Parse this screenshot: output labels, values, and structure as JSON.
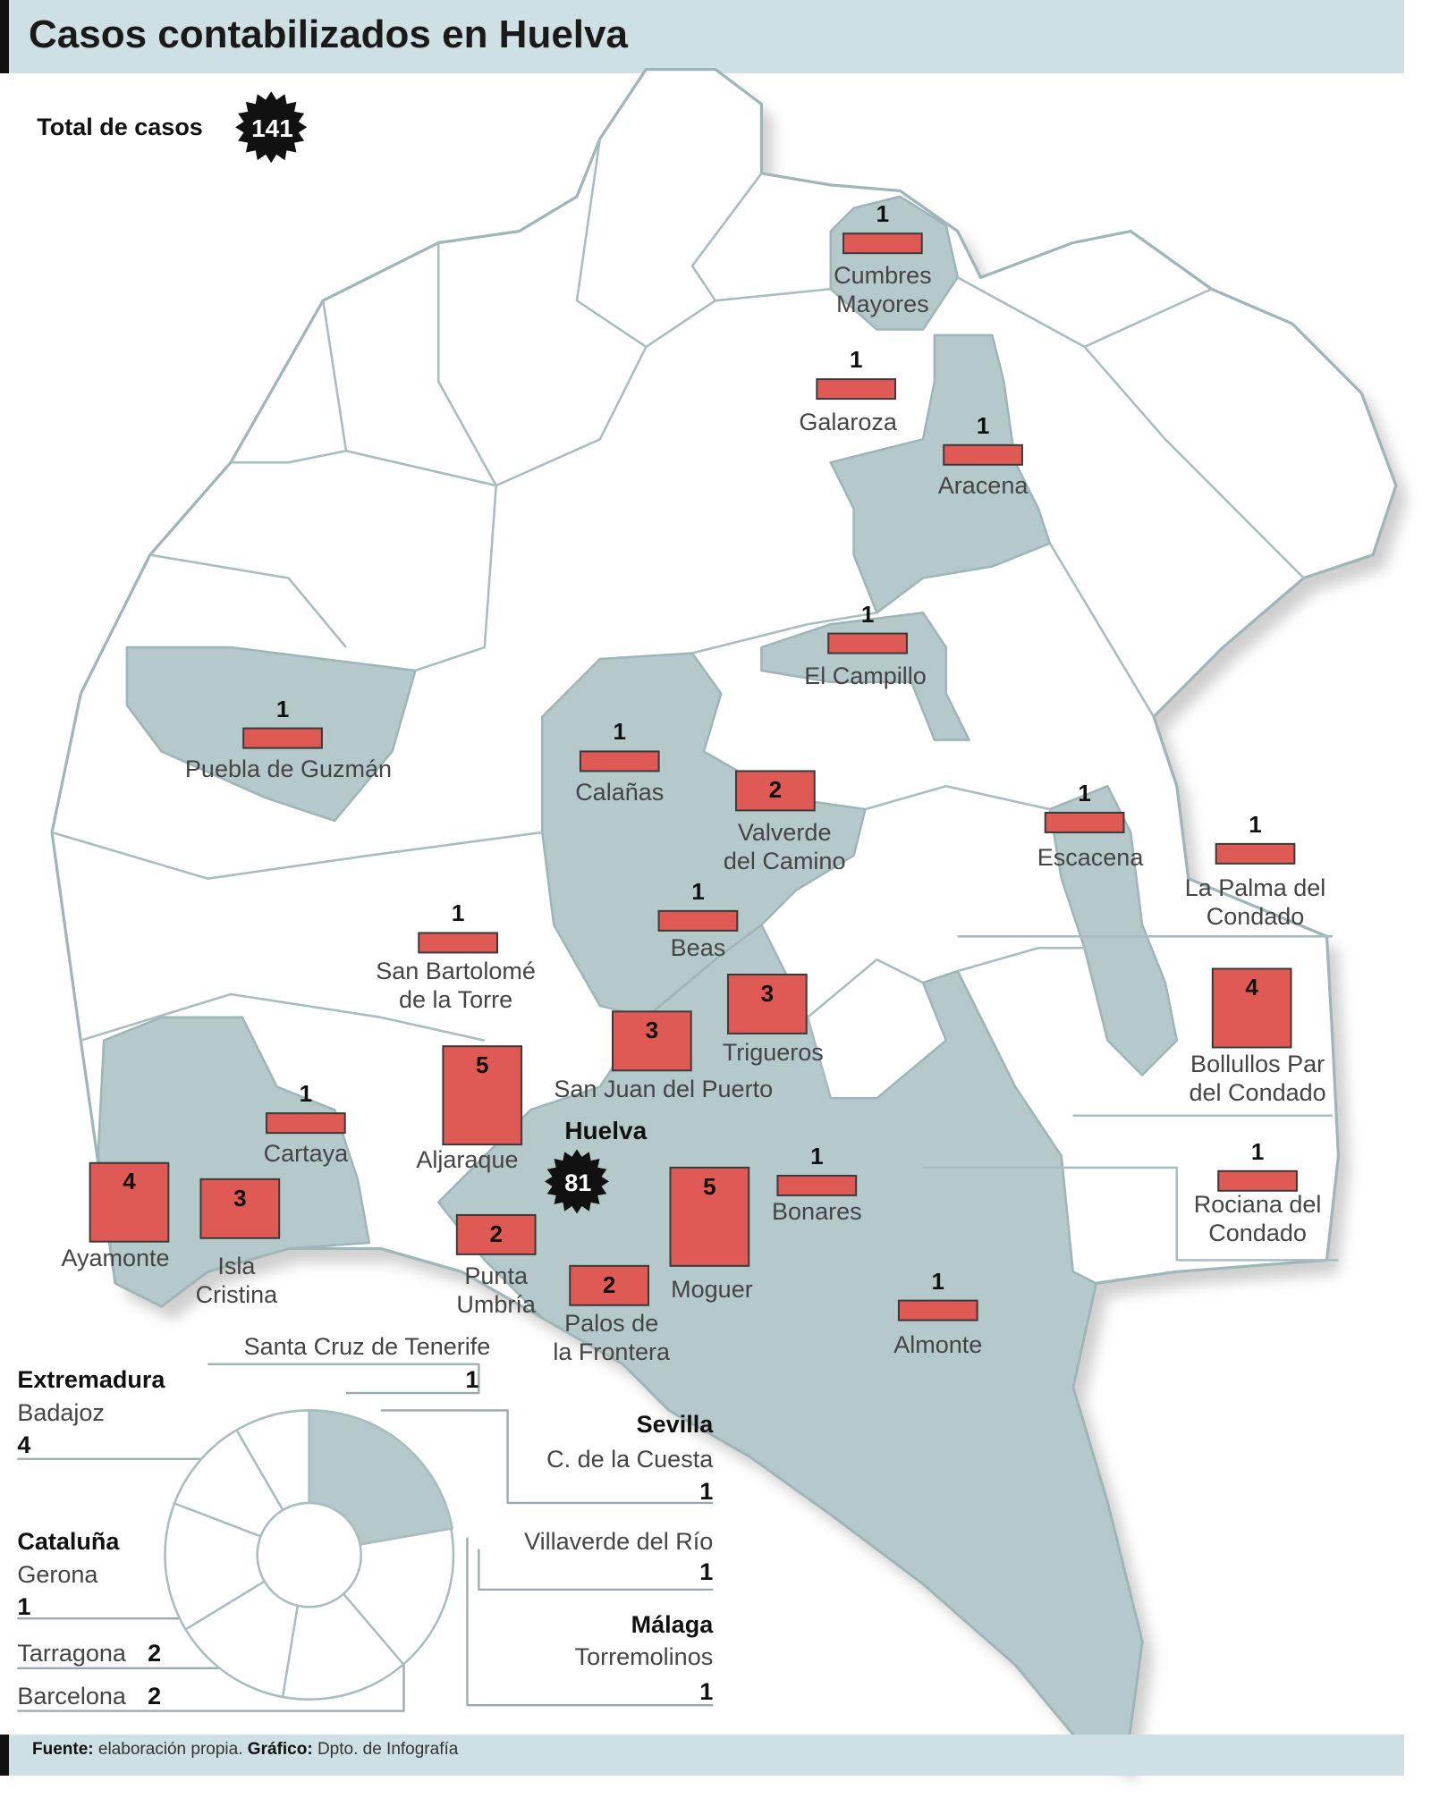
{
  "header": {
    "title": "Casos contabilizados en Huelva"
  },
  "total": {
    "label": "Total de casos",
    "value": 141
  },
  "capital": {
    "name": "Huelva",
    "cases": 81
  },
  "municipalities": [
    {
      "name": "Cumbres\nMayores",
      "cases": 1
    },
    {
      "name": "Galaroza",
      "cases": 1
    },
    {
      "name": "Aracena",
      "cases": 1
    },
    {
      "name": "El Campillo",
      "cases": 1
    },
    {
      "name": "Puebla de Guzmán",
      "cases": 1
    },
    {
      "name": "Calañas",
      "cases": 1
    },
    {
      "name": "Valverde\ndel Camino",
      "cases": 2
    },
    {
      "name": "Escacena",
      "cases": 1
    },
    {
      "name": "La Palma del\nCondado",
      "cases": 1
    },
    {
      "name": "Beas",
      "cases": 1
    },
    {
      "name": "San Bartolomé\nde la Torre",
      "cases": 1
    },
    {
      "name": "Trigueros",
      "cases": 3
    },
    {
      "name": "San Juan del Puerto",
      "cases": 3
    },
    {
      "name": "Bollullos Par\ndel Condado",
      "cases": 4
    },
    {
      "name": "Aljaraque",
      "cases": 5
    },
    {
      "name": "Cartaya",
      "cases": 1
    },
    {
      "name": "Ayamonte",
      "cases": 4
    },
    {
      "name": "Isla\nCristina",
      "cases": 3
    },
    {
      "name": "Punta\nUmbría",
      "cases": 2
    },
    {
      "name": "Moguer",
      "cases": 5
    },
    {
      "name": "Palos de\nla Frontera",
      "cases": 2
    },
    {
      "name": "Bonares",
      "cases": 1
    },
    {
      "name": "Almonte",
      "cases": 1
    },
    {
      "name": "Rociana del\nCondado",
      "cases": 1
    }
  ],
  "outside": [
    {
      "places": [
        {
          "name": "Santa Cruz de Tenerife",
          "cases": 1
        }
      ]
    },
    {
      "region": "Extremadura",
      "places": [
        {
          "name": "Badajoz",
          "cases": 4
        }
      ]
    },
    {
      "region": "Cataluña",
      "places": [
        {
          "name": "Gerona",
          "cases": 1
        },
        {
          "name": "Tarragona",
          "cases": 2
        },
        {
          "name": "Barcelona",
          "cases": 2
        }
      ]
    },
    {
      "region": "Sevilla",
      "places": [
        {
          "name": "C. de la Cuesta",
          "cases": 1
        },
        {
          "name": "Villaverde del Río",
          "cases": 1
        }
      ]
    },
    {
      "region": "Málaga",
      "places": [
        {
          "name": "Torremolinos",
          "cases": 1
        }
      ]
    }
  ],
  "footer": {
    "source_label": "Fuente:",
    "source": "elaboración propia.",
    "graphic_label": "Gráfico:",
    "graphic": "Dpto. de Infografía"
  }
}
